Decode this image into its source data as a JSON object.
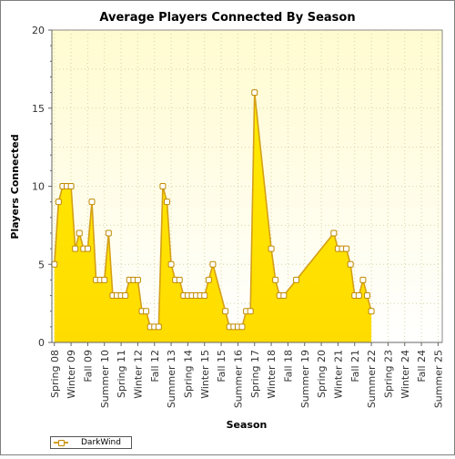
{
  "chart_data": {
    "type": "area",
    "title": "Average Players Connected By Season",
    "xlabel": "Season",
    "ylabel": "Players Connected",
    "ylim": [
      0,
      20
    ],
    "yticks": [
      0,
      5,
      10,
      15,
      20
    ],
    "grid": true,
    "legend_position": "bottom-left",
    "x_tick_labels": [
      "Spring 08",
      "Winter 09",
      "Fall 09",
      "Summer 10",
      "Spring 11",
      "Winter 12",
      "Fall 12",
      "Summer 13",
      "Spring 14",
      "Winter 15",
      "Fall 15",
      "Summer 16",
      "Spring 17",
      "Winter 18",
      "Fall 18",
      "Summer 19",
      "Spring 20",
      "Winter 21",
      "Fall 21",
      "Summer 22",
      "Spring 23",
      "Winter 24",
      "Fall 24",
      "Summer 25"
    ],
    "series": [
      {
        "name": "DarkWind",
        "color": "#ffe600",
        "line_color": "#d4a017",
        "points": [
          {
            "x": 0,
            "y": 5
          },
          {
            "x": 0.25,
            "y": 9
          },
          {
            "x": 0.5,
            "y": 10
          },
          {
            "x": 0.75,
            "y": 10
          },
          {
            "x": 1,
            "y": 10
          },
          {
            "x": 1.25,
            "y": 6
          },
          {
            "x": 1.5,
            "y": 7
          },
          {
            "x": 1.75,
            "y": 6
          },
          {
            "x": 2,
            "y": 6
          },
          {
            "x": 2.25,
            "y": 9
          },
          {
            "x": 2.5,
            "y": 4
          },
          {
            "x": 2.75,
            "y": 4
          },
          {
            "x": 3,
            "y": 4
          },
          {
            "x": 3.25,
            "y": 7
          },
          {
            "x": 3.5,
            "y": 3
          },
          {
            "x": 3.75,
            "y": 3
          },
          {
            "x": 4,
            "y": 3
          },
          {
            "x": 4.25,
            "y": 3
          },
          {
            "x": 4.5,
            "y": 4
          },
          {
            "x": 4.75,
            "y": 4
          },
          {
            "x": 5,
            "y": 4
          },
          {
            "x": 5.25,
            "y": 2
          },
          {
            "x": 5.5,
            "y": 2
          },
          {
            "x": 5.75,
            "y": 1
          },
          {
            "x": 6,
            "y": 1
          },
          {
            "x": 6.25,
            "y": 1
          },
          {
            "x": 6.5,
            "y": 10
          },
          {
            "x": 6.75,
            "y": 9
          },
          {
            "x": 7,
            "y": 5
          },
          {
            "x": 7.25,
            "y": 4
          },
          {
            "x": 7.5,
            "y": 4
          },
          {
            "x": 7.75,
            "y": 3
          },
          {
            "x": 8,
            "y": 3
          },
          {
            "x": 8.25,
            "y": 3
          },
          {
            "x": 8.5,
            "y": 3
          },
          {
            "x": 8.75,
            "y": 3
          },
          {
            "x": 9,
            "y": 3
          },
          {
            "x": 9.25,
            "y": 4
          },
          {
            "x": 9.5,
            "y": 5
          },
          {
            "x": 10.25,
            "y": 2
          },
          {
            "x": 10.5,
            "y": 1
          },
          {
            "x": 10.75,
            "y": 1
          },
          {
            "x": 11,
            "y": 1
          },
          {
            "x": 11.25,
            "y": 1
          },
          {
            "x": 11.5,
            "y": 2
          },
          {
            "x": 11.75,
            "y": 2
          },
          {
            "x": 12,
            "y": 16
          },
          {
            "x": 13,
            "y": 6
          },
          {
            "x": 13.25,
            "y": 4
          },
          {
            "x": 13.5,
            "y": 3
          },
          {
            "x": 13.75,
            "y": 3
          },
          {
            "x": 14.5,
            "y": 4
          },
          {
            "x": 16.75,
            "y": 7
          },
          {
            "x": 17,
            "y": 6
          },
          {
            "x": 17.25,
            "y": 6
          },
          {
            "x": 17.5,
            "y": 6
          },
          {
            "x": 17.75,
            "y": 5
          },
          {
            "x": 18,
            "y": 3
          },
          {
            "x": 18.25,
            "y": 3
          },
          {
            "x": 18.5,
            "y": 4
          },
          {
            "x": 18.75,
            "y": 3
          },
          {
            "x": 19,
            "y": 2
          }
        ]
      }
    ]
  }
}
